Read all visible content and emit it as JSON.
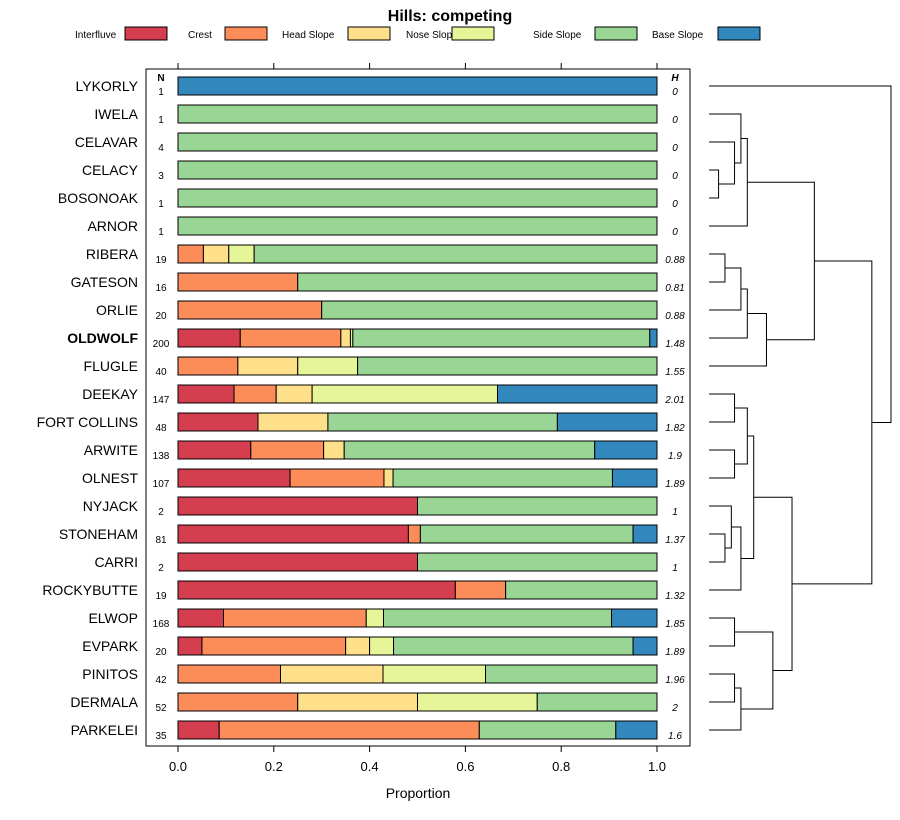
{
  "chart_data": {
    "type": "bar",
    "subtype": "stacked-horizontal-proportion",
    "title": "Hills: competing",
    "xlabel": "Proportion",
    "xlim": [
      0,
      1
    ],
    "xticks": [
      0.0,
      0.2,
      0.4,
      0.6,
      0.8,
      1.0
    ],
    "xtick_labels": [
      "0.0",
      "0.2",
      "0.4",
      "0.6",
      "0.8",
      "1.0"
    ],
    "n_header": "N",
    "h_header": "H",
    "series": [
      {
        "name": "Interfluve",
        "color": "#d53e4f"
      },
      {
        "name": "Crest",
        "color": "#fc8d59"
      },
      {
        "name": "Head Slope",
        "color": "#fee08b"
      },
      {
        "name": "Nose Slope",
        "color": "#e6f598"
      },
      {
        "name": "Side Slope",
        "color": "#99d594"
      },
      {
        "name": "Base Slope",
        "color": "#3288bd"
      }
    ],
    "rows": [
      {
        "label": "LYKORLY",
        "n": "1",
        "h": "0",
        "bold": false,
        "values": [
          0,
          0,
          0,
          0,
          0,
          1.0
        ]
      },
      {
        "label": "IWELA",
        "n": "1",
        "h": "0",
        "bold": false,
        "values": [
          0,
          0,
          0,
          0,
          1.0,
          0
        ]
      },
      {
        "label": "CELAVAR",
        "n": "4",
        "h": "0",
        "bold": false,
        "values": [
          0,
          0,
          0,
          0,
          1.0,
          0
        ]
      },
      {
        "label": "CELACY",
        "n": "3",
        "h": "0",
        "bold": false,
        "values": [
          0,
          0,
          0,
          0,
          1.0,
          0
        ]
      },
      {
        "label": "BOSONOAK",
        "n": "1",
        "h": "0",
        "bold": false,
        "values": [
          0,
          0,
          0,
          0,
          1.0,
          0
        ]
      },
      {
        "label": "ARNOR",
        "n": "1",
        "h": "0",
        "bold": false,
        "values": [
          0,
          0,
          0,
          0,
          1.0,
          0
        ]
      },
      {
        "label": "RIBERA",
        "n": "19",
        "h": "0.88",
        "bold": false,
        "values": [
          0,
          0.053,
          0.053,
          0.053,
          0.841,
          0
        ]
      },
      {
        "label": "GATESON",
        "n": "16",
        "h": "0.81",
        "bold": false,
        "values": [
          0,
          0.25,
          0,
          0,
          0.75,
          0
        ]
      },
      {
        "label": "ORLIE",
        "n": "20",
        "h": "0.88",
        "bold": false,
        "values": [
          0,
          0.3,
          0,
          0,
          0.7,
          0
        ]
      },
      {
        "label": "OLDWOLF",
        "n": "200",
        "h": "1.48",
        "bold": true,
        "values": [
          0.13,
          0.21,
          0.02,
          0.005,
          0.62,
          0.015
        ]
      },
      {
        "label": "FLUGLE",
        "n": "40",
        "h": "1.55",
        "bold": false,
        "values": [
          0,
          0.125,
          0.125,
          0.125,
          0.625,
          0
        ]
      },
      {
        "label": "DEEKAY",
        "n": "147",
        "h": "2.01",
        "bold": false,
        "values": [
          0.117,
          0.088,
          0.075,
          0.387,
          0,
          0.333
        ]
      },
      {
        "label": "FORT COLLINS",
        "n": "48",
        "h": "1.82",
        "bold": false,
        "values": [
          0.167,
          0,
          0.146,
          0,
          0.479,
          0.208
        ]
      },
      {
        "label": "ARWITE",
        "n": "138",
        "h": "1.9",
        "bold": false,
        "values": [
          0.152,
          0.152,
          0.043,
          0,
          0.523,
          0.13
        ]
      },
      {
        "label": "OLNEST",
        "n": "107",
        "h": "1.89",
        "bold": false,
        "values": [
          0.234,
          0.196,
          0.019,
          0,
          0.458,
          0.093
        ]
      },
      {
        "label": "NYJACK",
        "n": "2",
        "h": "1",
        "bold": false,
        "values": [
          0.5,
          0,
          0,
          0,
          0.5,
          0
        ]
      },
      {
        "label": "STONEHAM",
        "n": "81",
        "h": "1.37",
        "bold": false,
        "values": [
          0.481,
          0.025,
          0,
          0,
          0.444,
          0.05
        ]
      },
      {
        "label": "CARRI",
        "n": "2",
        "h": "1",
        "bold": false,
        "values": [
          0.5,
          0,
          0,
          0,
          0.5,
          0
        ]
      },
      {
        "label": "ROCKYBUTTE",
        "n": "19",
        "h": "1.32",
        "bold": false,
        "values": [
          0.579,
          0.105,
          0,
          0,
          0.316,
          0
        ]
      },
      {
        "label": "ELWOP",
        "n": "168",
        "h": "1.85",
        "bold": false,
        "values": [
          0.095,
          0.298,
          0,
          0.036,
          0.476,
          0.095
        ]
      },
      {
        "label": "EVPARK",
        "n": "20",
        "h": "1.89",
        "bold": false,
        "values": [
          0.05,
          0.3,
          0.05,
          0.05,
          0.5,
          0.05
        ]
      },
      {
        "label": "PINITOS",
        "n": "42",
        "h": "1.96",
        "bold": false,
        "values": [
          0,
          0.214,
          0.214,
          0.214,
          0.358,
          0
        ]
      },
      {
        "label": "DERMALA",
        "n": "52",
        "h": "2",
        "bold": false,
        "values": [
          0,
          0.25,
          0.25,
          0.25,
          0.25,
          0
        ]
      },
      {
        "label": "PARKELEI",
        "n": "35",
        "h": "1.6",
        "bold": false,
        "values": [
          0.086,
          0.543,
          0,
          0,
          0.285,
          0.086
        ]
      }
    ],
    "dendrogram": {
      "merges": [
        [
          3,
          4,
          0.03
        ],
        [
          -1,
          2,
          0.08
        ],
        [
          1,
          -2,
          0.1
        ],
        [
          -3,
          5,
          0.12
        ],
        [
          6,
          7,
          0.05
        ],
        [
          -5,
          8,
          0.1
        ],
        [
          -6,
          9,
          0.12
        ],
        [
          -7,
          10,
          0.18
        ],
        [
          -4,
          -8,
          0.33
        ],
        [
          11,
          12,
          0.08
        ],
        [
          13,
          14,
          0.08
        ],
        [
          -10,
          -11,
          0.12
        ],
        [
          16,
          17,
          0.05
        ],
        [
          -13,
          15,
          0.07
        ],
        [
          -14,
          18,
          0.1
        ],
        [
          -12,
          -15,
          0.14
        ],
        [
          19,
          20,
          0.08
        ],
        [
          21,
          22,
          0.08
        ],
        [
          -18,
          23,
          0.1
        ],
        [
          -17,
          -19,
          0.2
        ],
        [
          -16,
          -20,
          0.26
        ],
        [
          -9,
          -21,
          0.51
        ],
        [
          0,
          -22,
          0.57
        ]
      ]
    }
  }
}
